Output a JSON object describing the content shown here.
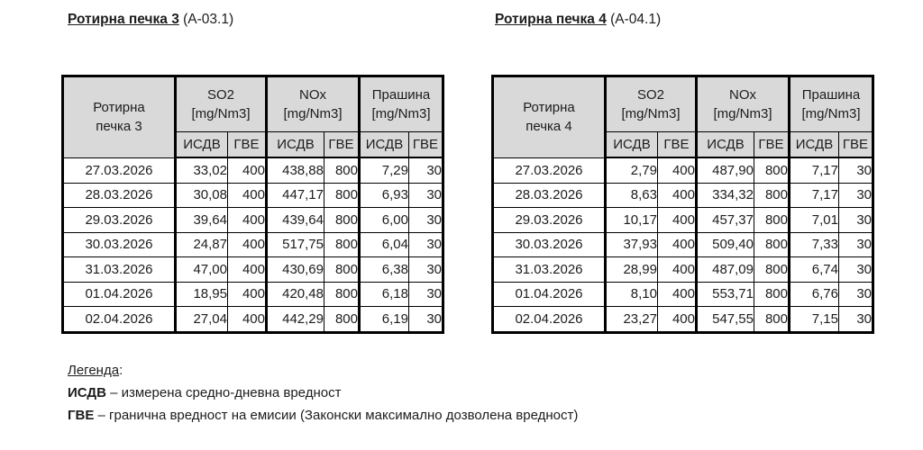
{
  "colors": {
    "header_bg": "#d9d9d9",
    "border": "#000000",
    "text": "#1c1c1c"
  },
  "tables": [
    {
      "title": "Ротирна печка 3",
      "title_suffix": " (А-03.1)",
      "corner_line1": "Ротирна",
      "corner_line2": "печка 3",
      "groups": [
        {
          "name": "SO2",
          "unit": "[mg/Nm3]"
        },
        {
          "name": "NOx",
          "unit": "[mg/Nm3]"
        },
        {
          "name": "Прашина",
          "unit": "[mg/Nm3]"
        }
      ],
      "subheaders": [
        "ИСДВ",
        "ГВЕ"
      ],
      "rows": [
        {
          "date": "27.03.2026",
          "values": [
            "33,02",
            "400",
            "438,88",
            "800",
            "7,29",
            "30"
          ]
        },
        {
          "date": "28.03.2026",
          "values": [
            "30,08",
            "400",
            "447,17",
            "800",
            "6,93",
            "30"
          ]
        },
        {
          "date": "29.03.2026",
          "values": [
            "39,64",
            "400",
            "439,64",
            "800",
            "6,00",
            "30"
          ]
        },
        {
          "date": "30.03.2026",
          "values": [
            "24,87",
            "400",
            "517,75",
            "800",
            "6,04",
            "30"
          ]
        },
        {
          "date": "31.03.2026",
          "values": [
            "47,00",
            "400",
            "430,69",
            "800",
            "6,38",
            "30"
          ]
        },
        {
          "date": "01.04.2026",
          "values": [
            "18,95",
            "400",
            "420,48",
            "800",
            "6,18",
            "30"
          ]
        },
        {
          "date": "02.04.2026",
          "values": [
            "27,04",
            "400",
            "442,29",
            "800",
            "6,19",
            "30"
          ]
        }
      ]
    },
    {
      "title": "Ротирна печка 4",
      "title_suffix": " (А-04.1)",
      "corner_line1": "Ротирна",
      "corner_line2": "печка 4",
      "groups": [
        {
          "name": "SO2",
          "unit": "[mg/Nm3]"
        },
        {
          "name": "NOx",
          "unit": "[mg/Nm3]"
        },
        {
          "name": "Прашина",
          "unit": "[mg/Nm3]"
        }
      ],
      "subheaders": [
        "ИСДВ",
        "ГВЕ"
      ],
      "rows": [
        {
          "date": "27.03.2026",
          "values": [
            "2,79",
            "400",
            "487,90",
            "800",
            "7,17",
            "30"
          ]
        },
        {
          "date": "28.03.2026",
          "values": [
            "8,63",
            "400",
            "334,32",
            "800",
            "7,17",
            "30"
          ]
        },
        {
          "date": "29.03.2026",
          "values": [
            "10,17",
            "400",
            "457,37",
            "800",
            "7,01",
            "30"
          ]
        },
        {
          "date": "30.03.2026",
          "values": [
            "37,93",
            "400",
            "509,40",
            "800",
            "7,33",
            "30"
          ]
        },
        {
          "date": "31.03.2026",
          "values": [
            "28,99",
            "400",
            "487,09",
            "800",
            "6,74",
            "30"
          ]
        },
        {
          "date": "01.04.2026",
          "values": [
            "8,10",
            "400",
            "553,71",
            "800",
            "6,76",
            "30"
          ]
        },
        {
          "date": "02.04.2026",
          "values": [
            "23,27",
            "400",
            "547,55",
            "800",
            "7,15",
            "30"
          ]
        }
      ]
    }
  ],
  "legend": {
    "title_word": "Легенда",
    "title_colon": ":",
    "items": [
      {
        "term": "ИСДВ",
        "rest": " – измерена средно-дневна вредност"
      },
      {
        "term": "ГВЕ",
        "rest": " – гранична вредност на емисии (Законски максимално дозволена вредност)"
      }
    ]
  }
}
